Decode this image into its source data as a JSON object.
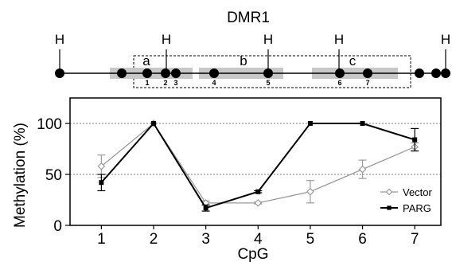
{
  "map": {
    "title": "DMR1",
    "site_label": "H",
    "region_labels": [
      "a",
      "b",
      "c"
    ],
    "cpg_numbers": [
      "1",
      "2",
      "3",
      "4",
      "5",
      "6",
      "7"
    ]
  },
  "chart_data": {
    "type": "line",
    "title": "",
    "xlabel": "CpG",
    "ylabel": "Methylation (%)",
    "x": [
      1,
      2,
      3,
      4,
      5,
      6,
      7
    ],
    "xticks": [
      "1",
      "2",
      "3",
      "4",
      "5",
      "6",
      "7"
    ],
    "ylim": [
      0,
      125
    ],
    "yticks": [
      0,
      50,
      100
    ],
    "gridlines_y": [
      50,
      100
    ],
    "legend_position": "bottom-right",
    "series": [
      {
        "name": "Vector",
        "values": [
          58,
          100,
          22,
          22,
          33,
          55,
          77
        ],
        "errors": [
          11,
          0,
          2,
          1,
          11,
          9,
          4
        ],
        "color": "#9a9a9a",
        "marker": "diamond-open"
      },
      {
        "name": "PARG",
        "values": [
          42,
          100,
          17,
          33,
          100,
          100,
          84
        ],
        "errors": [
          8,
          0,
          3,
          1,
          0,
          0,
          11
        ],
        "color": "#000000",
        "marker": "square"
      }
    ]
  }
}
